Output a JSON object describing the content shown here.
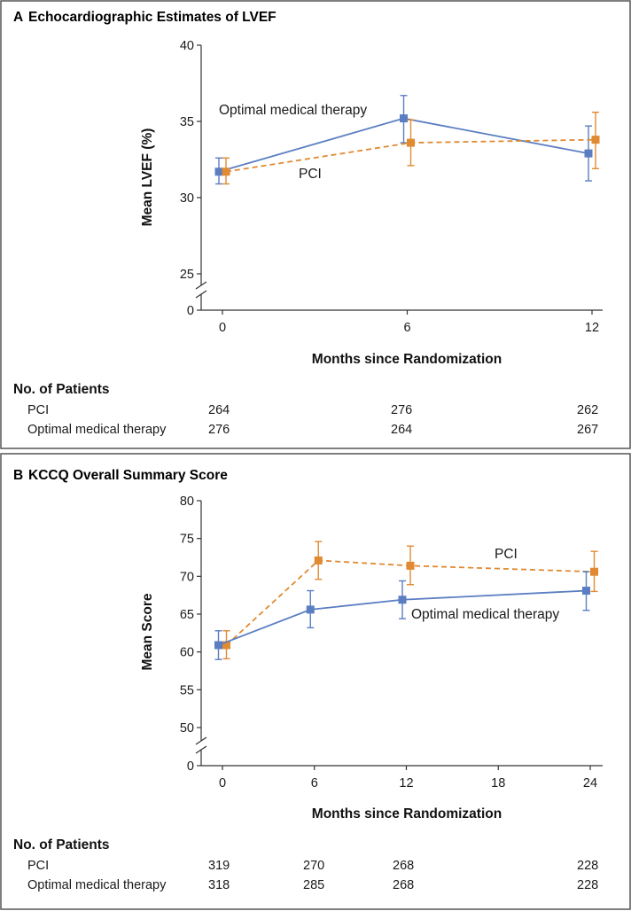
{
  "chart_data": [
    {
      "type": "line",
      "panel": "A",
      "title": "Echocardiographic Estimates of LVEF",
      "xlabel": "Months since Randomization",
      "ylabel": "Mean LVEF (%)",
      "x_ticks": [
        0,
        6,
        12
      ],
      "y_ticks": [
        25,
        30,
        35,
        40
      ],
      "y_break_label": "0",
      "ylim": [
        25,
        40
      ],
      "grid": false,
      "series": [
        {
          "name": "Optimal medical therapy",
          "color": "#5b7ec2",
          "line_style": "solid",
          "points": [
            {
              "x": 0,
              "y": 31.7,
              "lo": 30.9,
              "hi": 32.6
            },
            {
              "x": 6,
              "y": 35.2,
              "lo": 33.6,
              "hi": 36.7
            },
            {
              "x": 12,
              "y": 32.9,
              "lo": 31.1,
              "hi": 34.7
            }
          ]
        },
        {
          "name": "PCI",
          "color": "#e08a32",
          "line_style": "dashed",
          "points": [
            {
              "x": 0,
              "y": 31.7,
              "lo": 30.9,
              "hi": 32.6
            },
            {
              "x": 6,
              "y": 33.6,
              "lo": 32.1,
              "hi": 35.1
            },
            {
              "x": 12,
              "y": 33.8,
              "lo": 31.9,
              "hi": 35.6
            }
          ]
        }
      ],
      "patients": {
        "heading": "No. of Patients",
        "rows": [
          {
            "label": "PCI",
            "values": [
              "264",
              "276",
              "262"
            ]
          },
          {
            "label": "Optimal medical therapy",
            "values": [
              "276",
              "264",
              "267"
            ]
          }
        ]
      }
    },
    {
      "type": "line",
      "panel": "B",
      "title": "KCCQ Overall Summary Score",
      "xlabel": "Months since Randomization",
      "ylabel": "Mean Score",
      "x_ticks": [
        0,
        6,
        12,
        18,
        24
      ],
      "y_ticks": [
        50,
        55,
        60,
        65,
        70,
        75,
        80
      ],
      "y_break_label": "0",
      "ylim": [
        50,
        80
      ],
      "grid": false,
      "series": [
        {
          "name": "PCI",
          "color": "#e08a32",
          "line_style": "dashed",
          "points": [
            {
              "x": 0,
              "y": 60.9,
              "lo": 59.1,
              "hi": 62.8
            },
            {
              "x": 6,
              "y": 72.1,
              "lo": 69.6,
              "hi": 74.6
            },
            {
              "x": 12,
              "y": 71.4,
              "lo": 68.9,
              "hi": 74.0
            },
            {
              "x": 24,
              "y": 70.6,
              "lo": 68.0,
              "hi": 73.3
            }
          ]
        },
        {
          "name": "Optimal medical therapy",
          "color": "#5b7ec2",
          "line_style": "solid",
          "points": [
            {
              "x": 0,
              "y": 60.9,
              "lo": 59.0,
              "hi": 62.8
            },
            {
              "x": 6,
              "y": 65.6,
              "lo": 63.2,
              "hi": 68.1
            },
            {
              "x": 12,
              "y": 66.9,
              "lo": 64.4,
              "hi": 69.4
            },
            {
              "x": 24,
              "y": 68.1,
              "lo": 65.5,
              "hi": 70.6
            }
          ]
        }
      ],
      "patients": {
        "heading": "No. of Patients",
        "rows": [
          {
            "label": "PCI",
            "values": [
              "319",
              "270",
              "268",
              "228"
            ]
          },
          {
            "label": "Optimal medical therapy",
            "values": [
              "318",
              "285",
              "268",
              "228"
            ]
          }
        ]
      }
    }
  ]
}
